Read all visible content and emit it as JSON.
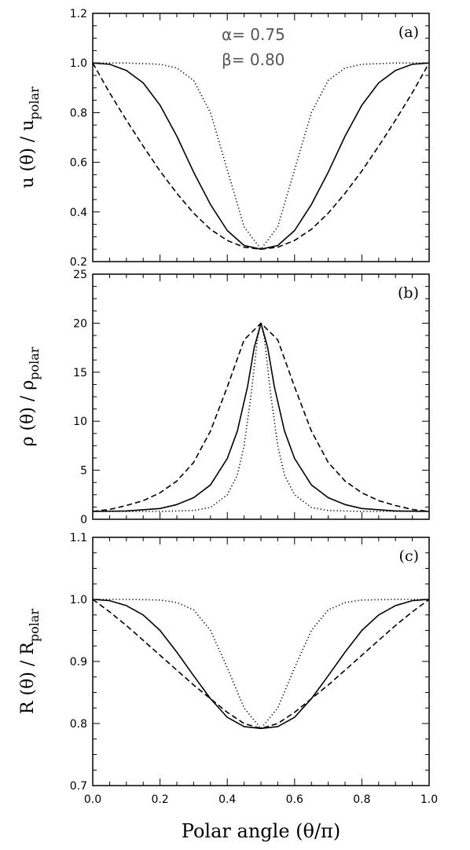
{
  "chart_data": [
    {
      "id": "a",
      "type": "line",
      "tag": "(a)",
      "ylabel_main": "u (θ) / u",
      "ylabel_sub": "polar",
      "ylim": [
        0.2,
        1.2
      ],
      "yticks": [
        0.2,
        0.4,
        0.6,
        0.8,
        1.0,
        1.2
      ],
      "ytick_labels": [
        "0.2",
        "0.4",
        "0.6",
        "0.8",
        "1.0",
        "1.2"
      ],
      "xlim": [
        0.0,
        1.0
      ],
      "annotations": [
        "α= 0.75",
        "β= 0.80"
      ],
      "series": [
        {
          "style": "solid",
          "x": [
            0.0,
            0.05,
            0.1,
            0.15,
            0.2,
            0.25,
            0.3,
            0.35,
            0.4,
            0.45,
            0.5,
            0.55,
            0.6,
            0.65,
            0.7,
            0.75,
            0.8,
            0.85,
            0.9,
            0.95,
            1.0
          ],
          "y": [
            1.0,
            0.995,
            0.97,
            0.92,
            0.83,
            0.705,
            0.56,
            0.43,
            0.325,
            0.265,
            0.25,
            0.265,
            0.325,
            0.43,
            0.56,
            0.705,
            0.83,
            0.92,
            0.97,
            0.995,
            1.0
          ]
        },
        {
          "style": "dotted",
          "x": [
            0.0,
            0.1,
            0.2,
            0.25,
            0.3,
            0.35,
            0.4,
            0.45,
            0.5,
            0.55,
            0.6,
            0.65,
            0.7,
            0.75,
            0.8,
            0.9,
            1.0
          ],
          "y": [
            1.0,
            1.0,
            0.995,
            0.98,
            0.93,
            0.8,
            0.57,
            0.34,
            0.25,
            0.34,
            0.57,
            0.8,
            0.93,
            0.98,
            0.995,
            1.0,
            1.0
          ]
        },
        {
          "style": "dashed",
          "x": [
            0.0,
            0.05,
            0.1,
            0.15,
            0.2,
            0.25,
            0.3,
            0.35,
            0.4,
            0.45,
            0.5,
            0.55,
            0.6,
            0.65,
            0.7,
            0.75,
            0.8,
            0.85,
            0.9,
            0.95,
            1.0
          ],
          "y": [
            1.0,
            0.88,
            0.77,
            0.665,
            0.565,
            0.475,
            0.395,
            0.33,
            0.285,
            0.258,
            0.25,
            0.258,
            0.285,
            0.33,
            0.395,
            0.475,
            0.565,
            0.665,
            0.77,
            0.88,
            1.0
          ]
        }
      ]
    },
    {
      "id": "b",
      "type": "line",
      "tag": "(b)",
      "ylabel_main": "ρ (θ) / ρ",
      "ylabel_sub": "polar",
      "ylim": [
        0,
        25
      ],
      "yticks": [
        0,
        5,
        10,
        15,
        20,
        25
      ],
      "ytick_labels": [
        "0",
        "5",
        "10",
        "15",
        "20",
        "25"
      ],
      "xlim": [
        0.0,
        1.0
      ],
      "series": [
        {
          "style": "solid",
          "x": [
            0.0,
            0.1,
            0.2,
            0.25,
            0.3,
            0.35,
            0.4,
            0.43,
            0.46,
            0.48,
            0.5,
            0.52,
            0.54,
            0.57,
            0.6,
            0.65,
            0.7,
            0.75,
            0.8,
            0.9,
            1.0
          ],
          "y": [
            0.8,
            0.85,
            1.1,
            1.5,
            2.2,
            3.5,
            6.2,
            9.0,
            13.5,
            17.5,
            20.0,
            17.5,
            13.5,
            9.0,
            6.2,
            3.5,
            2.2,
            1.5,
            1.1,
            0.85,
            0.8
          ]
        },
        {
          "style": "dotted",
          "x": [
            0.0,
            0.2,
            0.3,
            0.35,
            0.4,
            0.43,
            0.45,
            0.47,
            0.49,
            0.5,
            0.51,
            0.53,
            0.55,
            0.57,
            0.6,
            0.65,
            0.7,
            0.8,
            1.0
          ],
          "y": [
            0.8,
            0.8,
            0.9,
            1.2,
            2.5,
            4.5,
            7.5,
            12.5,
            18.5,
            20.0,
            18.5,
            12.5,
            7.5,
            4.5,
            2.5,
            1.2,
            0.9,
            0.8,
            0.8
          ]
        },
        {
          "style": "dashed",
          "x": [
            0.0,
            0.05,
            0.1,
            0.15,
            0.2,
            0.25,
            0.3,
            0.35,
            0.4,
            0.45,
            0.5,
            0.55,
            0.6,
            0.65,
            0.7,
            0.75,
            0.8,
            0.85,
            0.9,
            0.95,
            1.0
          ],
          "y": [
            0.8,
            1.0,
            1.4,
            1.9,
            2.7,
            3.9,
            5.8,
            9.0,
            13.5,
            18.3,
            20.0,
            18.3,
            13.5,
            9.0,
            5.8,
            3.9,
            2.7,
            1.9,
            1.4,
            1.0,
            0.8
          ]
        }
      ]
    },
    {
      "id": "c",
      "type": "line",
      "tag": "(c)",
      "ylabel_main": "R (θ) / R",
      "ylabel_sub": "polar",
      "ylim": [
        0.7,
        1.1
      ],
      "yticks": [
        0.7,
        0.8,
        0.9,
        1.0,
        1.1
      ],
      "ytick_labels": [
        "0.7",
        "0.8",
        "0.9",
        "1.0",
        "1.1"
      ],
      "xlim": [
        0.0,
        1.0
      ],
      "xticks": [
        0.0,
        0.2,
        0.4,
        0.6,
        0.8,
        1.0
      ],
      "xtick_labels": [
        "0.0",
        "0.2",
        "0.4",
        "0.6",
        "0.8",
        "1.0"
      ],
      "xlabel": "Polar angle (θ/π)",
      "series": [
        {
          "style": "solid",
          "x": [
            0.0,
            0.05,
            0.1,
            0.15,
            0.2,
            0.25,
            0.3,
            0.35,
            0.4,
            0.45,
            0.5,
            0.55,
            0.6,
            0.65,
            0.7,
            0.75,
            0.8,
            0.85,
            0.9,
            0.95,
            1.0
          ],
          "y": [
            1.0,
            0.998,
            0.99,
            0.975,
            0.95,
            0.915,
            0.877,
            0.84,
            0.81,
            0.795,
            0.792,
            0.795,
            0.81,
            0.84,
            0.877,
            0.915,
            0.95,
            0.975,
            0.99,
            0.998,
            1.0
          ]
        },
        {
          "style": "dotted",
          "x": [
            0.0,
            0.1,
            0.2,
            0.25,
            0.3,
            0.35,
            0.4,
            0.45,
            0.5,
            0.55,
            0.6,
            0.65,
            0.7,
            0.75,
            0.8,
            0.9,
            1.0
          ],
          "y": [
            1.0,
            1.0,
            0.999,
            0.995,
            0.983,
            0.95,
            0.89,
            0.825,
            0.792,
            0.825,
            0.89,
            0.95,
            0.983,
            0.995,
            0.999,
            1.0,
            1.0
          ]
        },
        {
          "style": "dashed",
          "x": [
            0.0,
            0.05,
            0.1,
            0.15,
            0.2,
            0.25,
            0.3,
            0.35,
            0.4,
            0.45,
            0.5,
            0.55,
            0.6,
            0.65,
            0.7,
            0.75,
            0.8,
            0.85,
            0.9,
            0.95,
            1.0
          ],
          "y": [
            1.0,
            0.98,
            0.958,
            0.934,
            0.91,
            0.886,
            0.862,
            0.84,
            0.818,
            0.8,
            0.792,
            0.8,
            0.818,
            0.84,
            0.862,
            0.886,
            0.91,
            0.934,
            0.958,
            0.98,
            1.0
          ]
        }
      ]
    }
  ]
}
